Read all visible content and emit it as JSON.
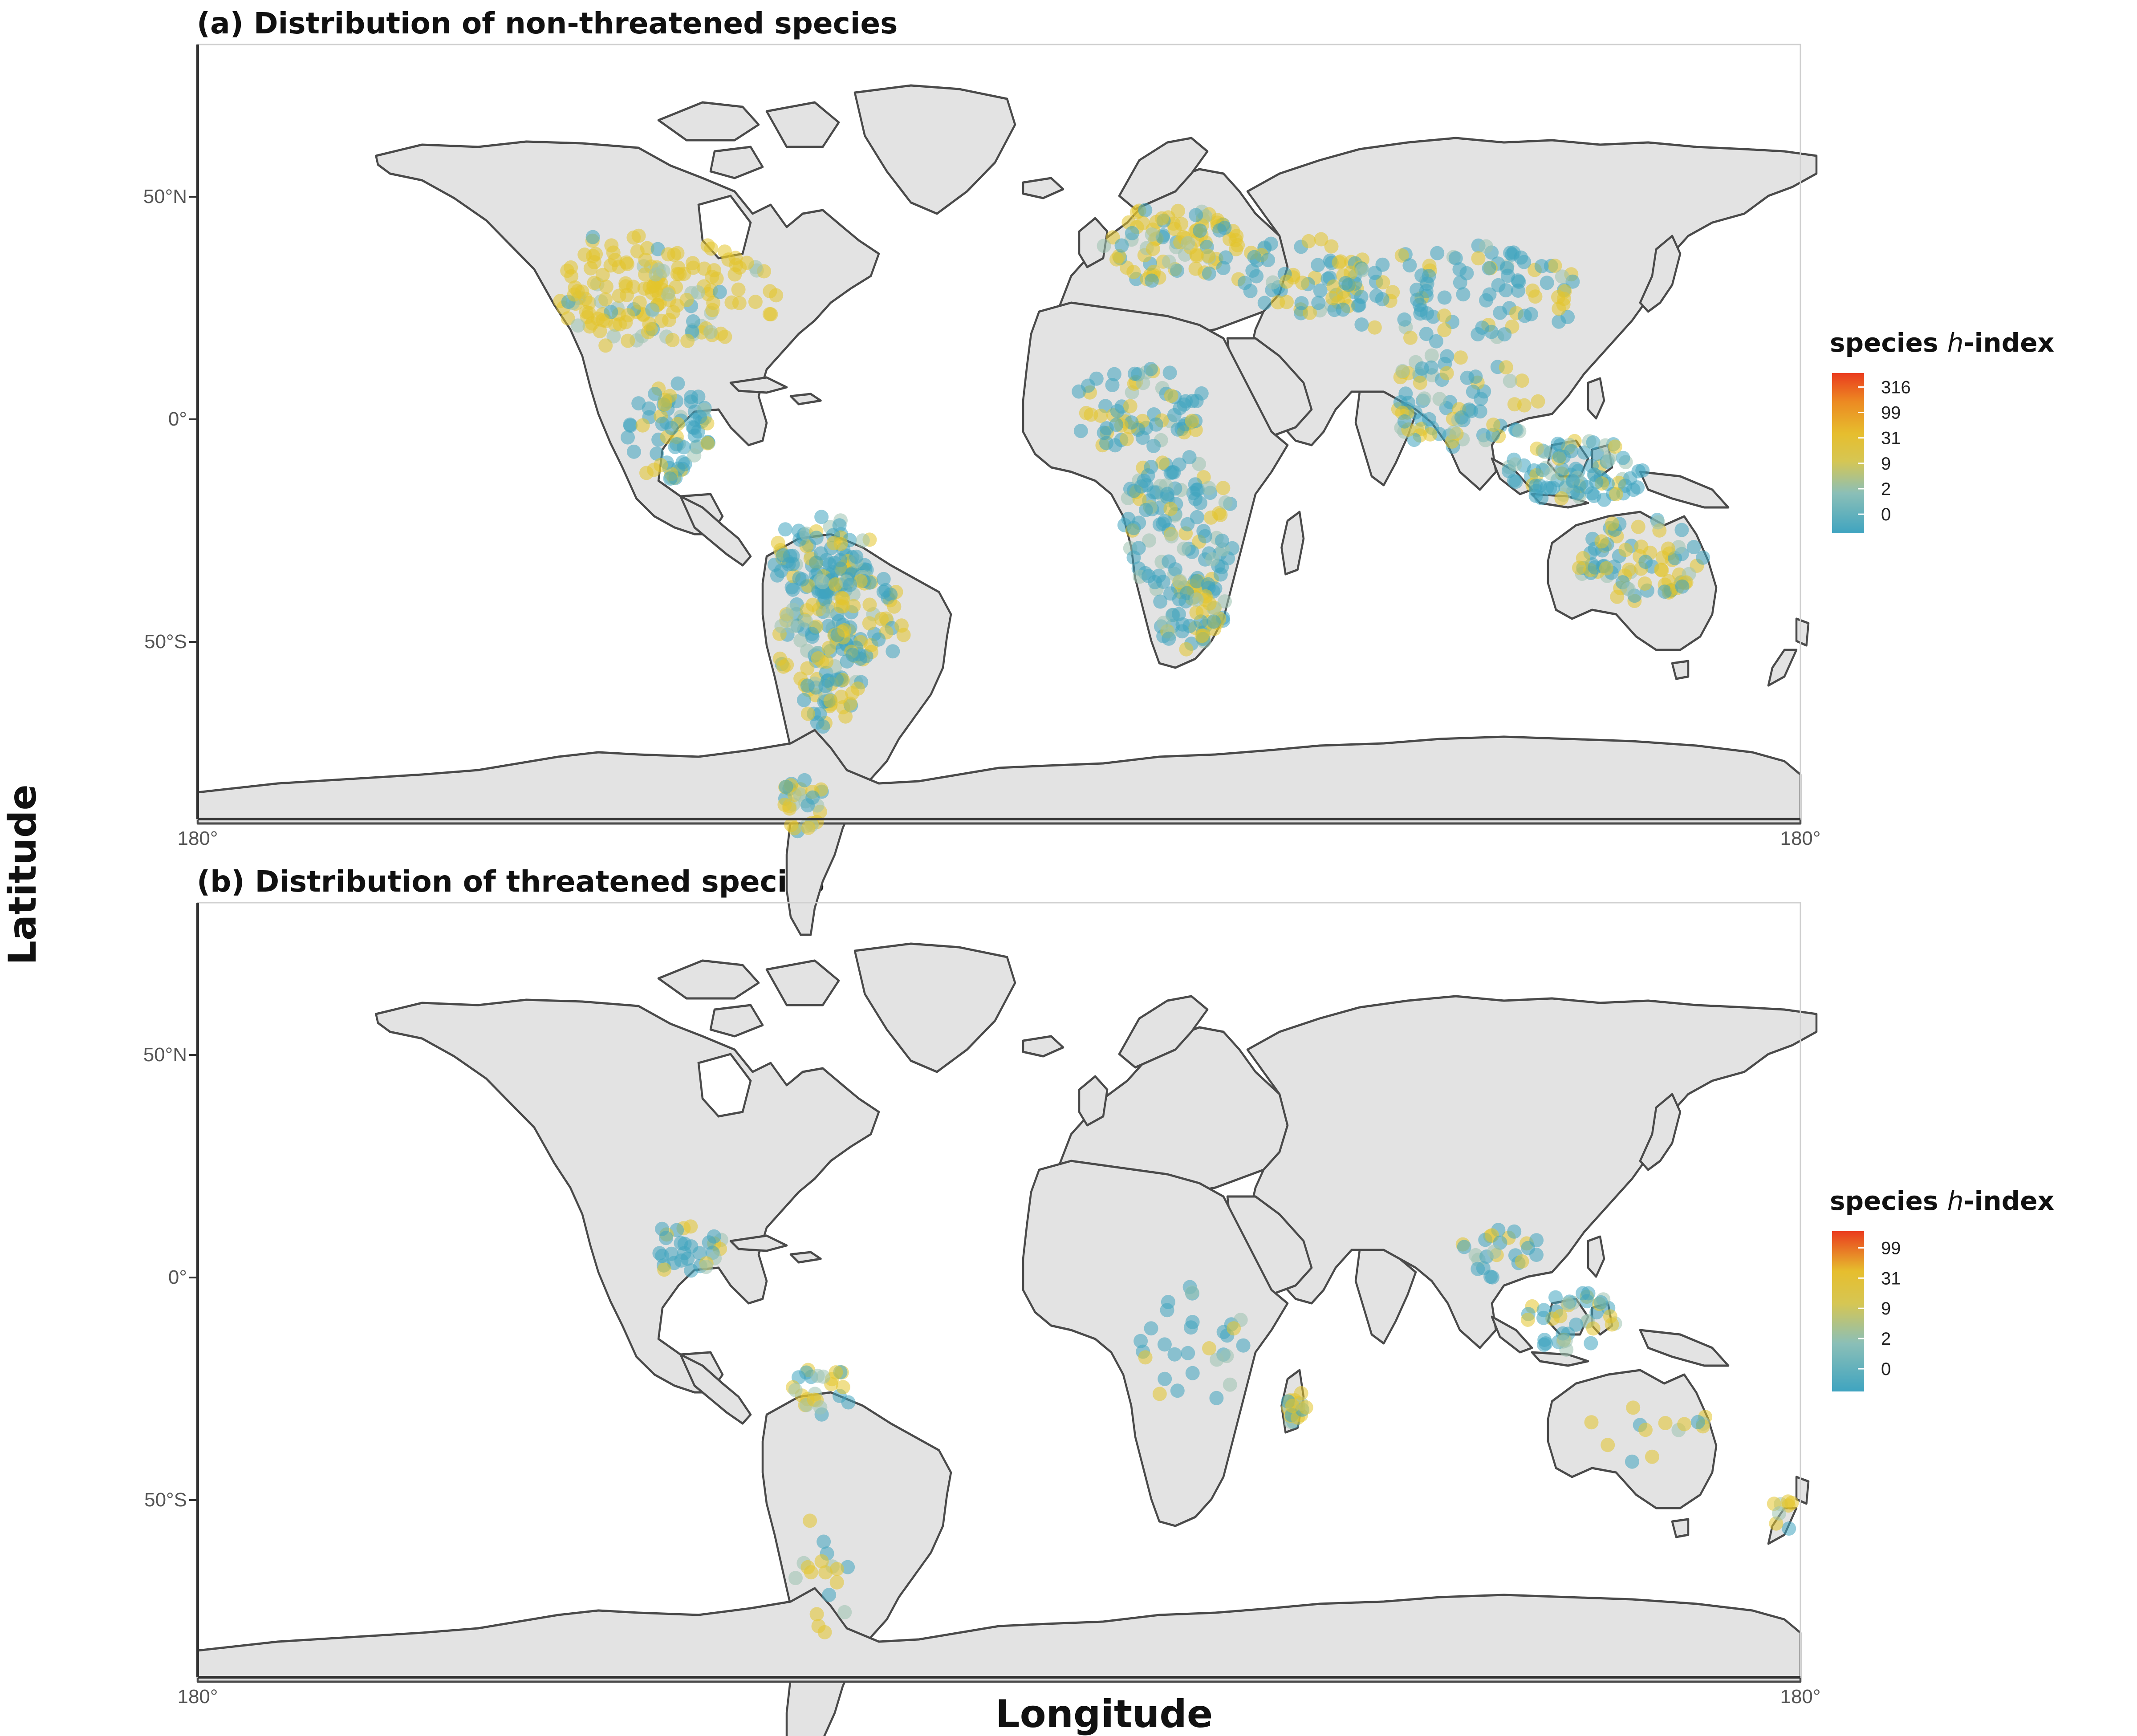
{
  "figure": {
    "x_axis_label": "Longitude",
    "y_axis_label": "Latitude"
  },
  "panels": [
    {
      "title": "(a) Distribution of non-threatened species",
      "lat_ticks": [
        "50°N",
        "0°",
        "50°S"
      ],
      "lon_ticks": [
        "180°",
        "180°"
      ],
      "legend": {
        "title_prefix": "species ",
        "title_italic": "h",
        "title_suffix": "-index",
        "labels": [
          "316",
          "99",
          "31",
          "9",
          "2",
          "0"
        ]
      }
    },
    {
      "title": "(b) Distribution of threatened species",
      "lat_ticks": [
        "50°N",
        "0°",
        "50°S"
      ],
      "lon_ticks": [
        "180°",
        "180°"
      ],
      "legend": {
        "title_prefix": "species ",
        "title_italic": "h",
        "title_suffix": "-index",
        "labels": [
          "99",
          "31",
          "9",
          "2",
          "0"
        ]
      }
    }
  ],
  "colors": {
    "land": "#e3e3e3",
    "border": "#4a4a4a",
    "low": "#3fa4c0",
    "mid": "#d9c23a",
    "high": "#ea3b1e"
  }
}
